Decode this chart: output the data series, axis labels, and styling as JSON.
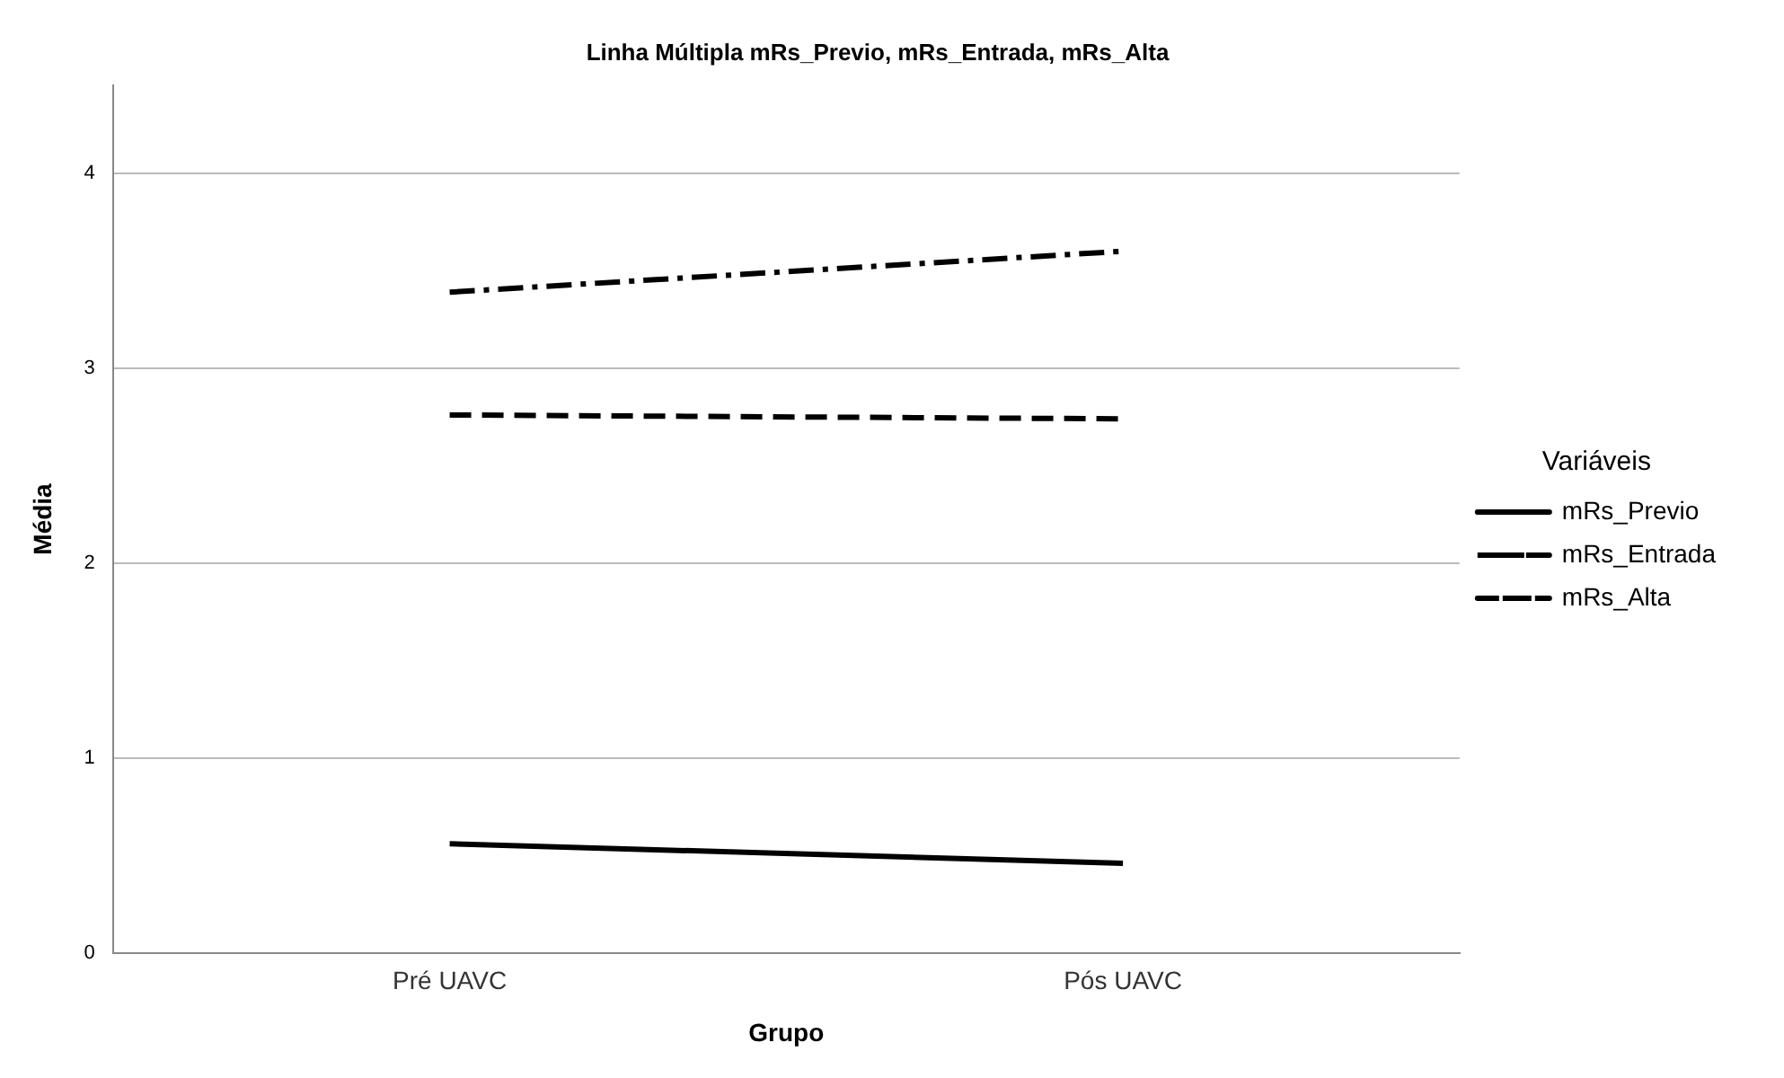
{
  "chart_data": {
    "type": "line",
    "title": "Linha Múltipla mRs_Previo, mRs_Entrada, mRs_Alta",
    "xlabel": "Grupo",
    "ylabel": "Média",
    "legend_title": "Variáveis",
    "categories": [
      "Pré UAVC",
      "Pós UAVC"
    ],
    "series": [
      {
        "name": "mRs_Previo",
        "color": "#000000",
        "values": [
          0.56,
          0.46
        ],
        "line_style": "solid"
      },
      {
        "name": "mRs_Entrada",
        "color": "#000000",
        "values": [
          3.39,
          3.6
        ],
        "line_style": "dashdot"
      },
      {
        "name": "mRs_Alta",
        "color": "#000000",
        "values": [
          2.76,
          2.74
        ],
        "line_style": "dashed"
      }
    ],
    "ylim": [
      0,
      4.45
    ],
    "yticks": [
      0,
      1,
      2,
      3,
      4
    ],
    "grid": "y",
    "legend": "right",
    "marker": "none"
  }
}
